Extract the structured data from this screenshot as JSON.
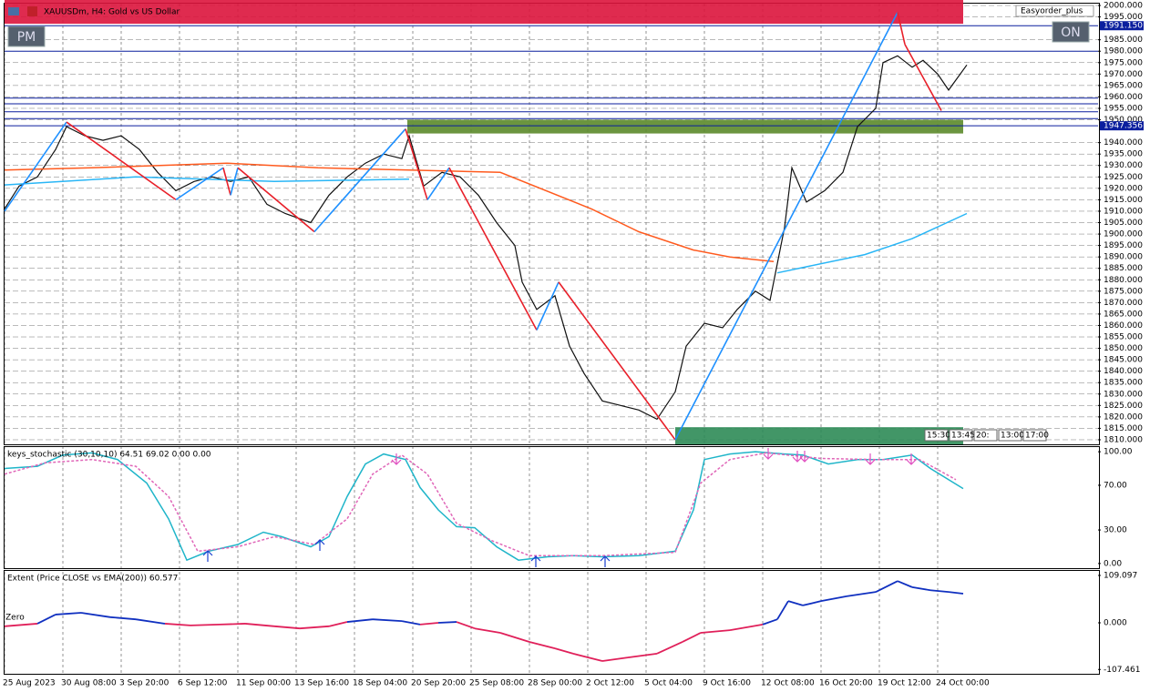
{
  "chart_data": [
    {
      "type": "line",
      "title": "XAUUSDm, H4: Gold vs US Dollar",
      "annotations": [
        "Easyorder_plus",
        "PM",
        "ON"
      ],
      "time_labels": [
        "15:30",
        "13:45",
        "20:",
        "13:00",
        "17:00"
      ],
      "xlim": [
        0,
        300
      ],
      "ylim": [
        1808,
        2002.4
      ],
      "grid": true,
      "yticks": [
        {
          "value": 2000,
          "label": "2000.000"
        },
        {
          "value": 1995,
          "label": "1995.000"
        },
        {
          "value": 1985,
          "label": "1985.000"
        },
        {
          "value": 1980,
          "label": "1980.000"
        },
        {
          "value": 1975,
          "label": "1975.000"
        },
        {
          "value": 1970,
          "label": "1970.000"
        },
        {
          "value": 1965,
          "label": "1965.000"
        },
        {
          "value": 1960,
          "label": "1960.000"
        },
        {
          "value": 1955,
          "label": "1955.000"
        },
        {
          "value": 1950,
          "label": "1950.000"
        },
        {
          "value": 1940,
          "label": "1940.000"
        },
        {
          "value": 1935,
          "label": "1935.000"
        },
        {
          "value": 1930,
          "label": "1930.000"
        },
        {
          "value": 1925,
          "label": "1925.000"
        },
        {
          "value": 1920,
          "label": "1920.000"
        },
        {
          "value": 1915,
          "label": "1915.000"
        },
        {
          "value": 1910,
          "label": "1910.000"
        },
        {
          "value": 1905,
          "label": "1905.000"
        },
        {
          "value": 1900,
          "label": "1900.000"
        },
        {
          "value": 1895,
          "label": "1895.000"
        },
        {
          "value": 1890,
          "label": "1890.000"
        },
        {
          "value": 1885,
          "label": "1885.000"
        },
        {
          "value": 1880,
          "label": "1880.000"
        },
        {
          "value": 1875,
          "label": "1875.000"
        },
        {
          "value": 1870,
          "label": "1870.000"
        },
        {
          "value": 1865,
          "label": "1865.000"
        },
        {
          "value": 1860,
          "label": "1860.000"
        },
        {
          "value": 1855,
          "label": "1855.000"
        },
        {
          "value": 1850,
          "label": "1850.000"
        },
        {
          "value": 1845,
          "label": "1845.000"
        },
        {
          "value": 1840,
          "label": "1840.000"
        },
        {
          "value": 1835,
          "label": "1835.000"
        },
        {
          "value": 1830,
          "label": "1830.000"
        },
        {
          "value": 1825,
          "label": "1825.000"
        },
        {
          "value": 1820,
          "label": "1820.000"
        },
        {
          "value": 1815,
          "label": "1815.000"
        },
        {
          "value": 1810,
          "label": "1810.000"
        }
      ],
      "zones": [
        {
          "x": [
            0,
            263
          ],
          "values": [
            1992,
            2002.4
          ],
          "color": "#dc143c"
        },
        {
          "x": [
            110.5,
            263
          ],
          "values": [
            1944,
            1950
          ],
          "color": "#5b8a2a"
        },
        {
          "x": [
            184,
            263
          ],
          "values": [
            1808,
            1815.5
          ],
          "color": "#2e8b57"
        }
      ],
      "levels": [
        {
          "value": 1991.15,
          "label": "1991.150"
        },
        1980,
        1959.5,
        1957,
        1953.5,
        1950.5,
        {
          "value": 1947.356,
          "label": "1947.356"
        }
      ],
      "level_color": "#0a1e9e",
      "series": [
        {
          "color": "#111111",
          "x": [
            0,
            4,
            9,
            14,
            17,
            22,
            27,
            32,
            37,
            42,
            47,
            52,
            57,
            62,
            67,
            72,
            77,
            84,
            89,
            94,
            99,
            104,
            109,
            111,
            115,
            120,
            125,
            130,
            135,
            140,
            142,
            146,
            151,
            155,
            159,
            164,
            169,
            174,
            179,
            184,
            187,
            192,
            197,
            201,
            206,
            210,
            214,
            216,
            220,
            225,
            230,
            234,
            239,
            241,
            245,
            249,
            252,
            256,
            259,
            264
          ],
          "values": [
            1911,
            1921,
            1925,
            1937,
            1947,
            1943,
            1941,
            1943,
            1937,
            1927,
            1919,
            1923,
            1925,
            1923,
            1925,
            1913,
            1909,
            1905,
            1917,
            1925,
            1931,
            1935,
            1933,
            1943,
            1921,
            1927,
            1925,
            1917,
            1905,
            1895,
            1879,
            1867,
            1873,
            1851,
            1839,
            1827,
            1825,
            1823,
            1819,
            1831,
            1851,
            1861,
            1859,
            1867,
            1875,
            1871,
            1903,
            1929,
            1914,
            1919,
            1927,
            1947,
            1955,
            1975,
            1978,
            1973,
            1976,
            1970,
            1963,
            1974
          ]
        },
        {
          "color": "#ff5a1e",
          "x": [
            0,
            24,
            61,
            86,
            111,
            136,
            161,
            174,
            189,
            199,
            211
          ],
          "values": [
            1928,
            1929,
            1931,
            1929,
            1928,
            1927,
            1911,
            1901,
            1893,
            1890,
            1888
          ]
        },
        {
          "color": "#29b6f6",
          "x": [
            0,
            36,
            74,
            111,
            160,
            212,
            236,
            249,
            264
          ],
          "values": [
            1921.5,
            1925,
            1923,
            1924,
            null,
            1883,
            1891,
            1898,
            1909
          ]
        }
      ],
      "zigzag": {
        "up_color": "#1e90ff",
        "down_color": "#e8202a",
        "x": [
          0,
          17,
          47,
          60,
          62,
          64,
          85,
          110,
          116,
          122,
          146,
          152,
          184,
          245,
          247,
          257
        ],
        "values": [
          1910,
          1949,
          1915,
          1929,
          1917,
          1929,
          1901,
          1946,
          1915,
          1929,
          1858,
          1879,
          1810,
          1997,
          1983,
          1954
        ]
      }
    },
    {
      "type": "line",
      "title": "keys_stochastic (30,10,10) 64.51 69.02 0.00 0.00",
      "xlim": [
        0,
        300
      ],
      "ylim": [
        -5,
        105
      ],
      "yticks": [
        {
          "value": 100,
          "label": "100.00"
        },
        {
          "value": 70,
          "label": "70.00"
        },
        {
          "value": 30,
          "label": "30.00"
        },
        {
          "value": 0,
          "label": "0.00"
        }
      ],
      "series": [
        {
          "color": "#1fb5c9",
          "x": [
            0,
            9,
            16,
            24,
            31,
            39,
            45,
            50,
            56,
            64,
            71,
            76,
            84,
            89,
            94,
            99,
            104,
            110,
            114,
            119,
            124,
            129,
            135,
            141,
            149,
            156,
            164,
            174,
            184,
            189,
            192,
            199,
            206,
            214,
            219,
            226,
            234,
            241,
            249,
            254,
            263
          ],
          "values": [
            85,
            87,
            97,
            99,
            93,
            72,
            40,
            3,
            11,
            17,
            28,
            24,
            15,
            24,
            60,
            89,
            98,
            93,
            68,
            48,
            33,
            32,
            15,
            3,
            6,
            7,
            6,
            7,
            11,
            48,
            93,
            98,
            100,
            98,
            97,
            89,
            93,
            93,
            97,
            85,
            67
          ]
        },
        {
          "color": "#e066b8",
          "dashed": true,
          "x": [
            0,
            11,
            24,
            36,
            45,
            53,
            64,
            74,
            85,
            94,
            101,
            109,
            116,
            124,
            134,
            144,
            164,
            184,
            191,
            199,
            209,
            224,
            239,
            251,
            261
          ],
          "values": [
            80,
            90,
            93,
            87,
            60,
            11,
            15,
            24,
            17,
            40,
            80,
            97,
            80,
            36,
            20,
            7,
            7,
            10,
            72,
            93,
            99,
            94,
            93,
            93,
            75
          ]
        }
      ]
    },
    {
      "type": "line",
      "title": "Extent (Price CLOSE vs EMA(200)) 60.577",
      "annotations": [
        "Zero"
      ],
      "xlim": [
        0,
        300
      ],
      "ylim": [
        -117.4,
        119.5
      ],
      "yticks": [
        {
          "value": 109.097,
          "label": "109.097"
        },
        {
          "value": 0,
          "label": "0.000"
        },
        {
          "value": -107.461,
          "label": "-107.461"
        }
      ],
      "xticks": [
        {
          "value": 0,
          "label": "25 Aug 2023"
        },
        {
          "value": 16,
          "label": "30 Aug 08:00"
        },
        {
          "value": 32,
          "label": "3 Sep 20:00"
        },
        {
          "value": 48,
          "label": "6 Sep 12:00"
        },
        {
          "value": 64,
          "label": "11 Sep 00:00"
        },
        {
          "value": 80,
          "label": "13 Sep 16:00"
        },
        {
          "value": 96,
          "label": "18 Sep 04:00"
        },
        {
          "value": 112,
          "label": "20 Sep 20:00"
        },
        {
          "value": 128,
          "label": "25 Sep 08:00"
        },
        {
          "value": 144,
          "label": "28 Sep 00:00"
        },
        {
          "value": 160,
          "label": "2 Oct 12:00"
        },
        {
          "value": 176,
          "label": "5 Oct 04:00"
        },
        {
          "value": 192,
          "label": "9 Oct 16:00"
        },
        {
          "value": 208,
          "label": "12 Oct 08:00"
        },
        {
          "value": 224,
          "label": "16 Oct 20:00"
        },
        {
          "value": 240,
          "label": "19 Oct 12:00"
        },
        {
          "value": 256,
          "label": "24 Oct 00:00"
        }
      ],
      "above_color": "#1030c0",
      "below_color": "#e0205a",
      "series": [
        {
          "x": [
            0,
            9,
            14,
            21,
            29,
            36,
            44,
            51,
            59,
            66,
            74,
            81,
            89,
            94,
            101,
            109,
            114,
            119,
            124,
            129,
            136,
            144,
            151,
            156,
            164,
            171,
            179,
            186,
            191,
            199,
            208,
            212,
            215,
            219,
            224,
            231,
            239,
            245,
            249,
            254,
            259,
            263
          ],
          "values": [
            -8,
            -2,
            19,
            23,
            13,
            8,
            -2,
            -6,
            -4,
            -2,
            -8,
            -13,
            -8,
            2,
            8,
            4,
            -4,
            0,
            2,
            -13,
            -23,
            -44,
            -59,
            -71,
            -88,
            -80,
            -71,
            -44,
            -23,
            -17,
            -4,
            8,
            50,
            40,
            50,
            61,
            71,
            96,
            82,
            75,
            71,
            67
          ]
        }
      ]
    }
  ]
}
